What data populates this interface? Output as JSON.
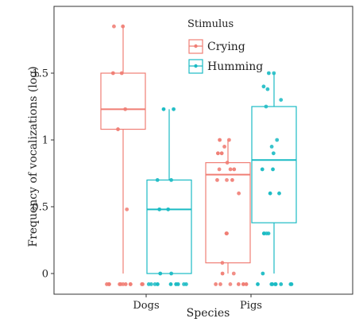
{
  "chart_data": {
    "type": "box",
    "xlabel": "Species",
    "ylabel": "Frequency of vocalizations (log)",
    "categories": [
      "Dogs",
      "Pigs"
    ],
    "ylim": [
      -0.1,
      1.9
    ],
    "yticks": [
      0,
      0.5,
      1,
      1.5
    ],
    "ytick_labels": [
      "0",
      "0.5",
      "1",
      "1.5"
    ],
    "grid": false,
    "legend": {
      "title": "Stimulus",
      "position": "top-center"
    },
    "series": [
      {
        "name": "Crying",
        "color": "#F07E75",
        "boxes": [
          {
            "category": "Dogs",
            "min": 0,
            "q1": 1.08,
            "median": 1.23,
            "q3": 1.5,
            "max": 1.85
          },
          {
            "category": "Pigs",
            "min": 0,
            "q1": 0.08,
            "median": 0.74,
            "q3": 0.83,
            "max": 1.0
          }
        ],
        "points": [
          {
            "category": "Dogs",
            "values": [
              1.85,
              1.85,
              1.5,
              1.5,
              1.23,
              1.08,
              0.48,
              -0.08,
              -0.08,
              -0.08,
              -0.08,
              -0.08,
              -0.08,
              -0.08,
              -0.08,
              -0.08,
              -0.08,
              -0.08
            ]
          },
          {
            "category": "Pigs",
            "values": [
              1.0,
              1.0,
              0.95,
              0.9,
              0.9,
              0.83,
              0.78,
              0.78,
              0.78,
              0.7,
              0.7,
              0.7,
              0.6,
              0.3,
              0.3,
              0.3,
              0.08,
              0,
              0,
              -0.08,
              -0.08,
              -0.08,
              -0.08,
              -0.08,
              -0.08
            ]
          }
        ]
      },
      {
        "name": "Humming",
        "color": "#1BBBC4",
        "boxes": [
          {
            "category": "Dogs",
            "min": 0,
            "q1": 0,
            "median": 0.48,
            "q3": 0.7,
            "max": 1.23
          },
          {
            "category": "Pigs",
            "min": 0,
            "q1": 0.38,
            "median": 0.85,
            "q3": 1.25,
            "max": 1.5
          }
        ],
        "points": [
          {
            "category": "Dogs",
            "values": [
              1.23,
              1.23,
              0.7,
              0.7,
              0.48,
              0.48,
              0,
              0,
              -0.08,
              -0.08,
              -0.08,
              -0.08,
              -0.08,
              -0.08,
              -0.08,
              -0.08,
              -0.08
            ]
          },
          {
            "category": "Pigs",
            "values": [
              1.5,
              1.5,
              1.4,
              1.38,
              1.3,
              1.25,
              1.0,
              0.95,
              0.9,
              0.78,
              0.78,
              0.6,
              0.6,
              0.3,
              0.3,
              0.3,
              0.3,
              0,
              -0.08,
              -0.08,
              -0.08,
              -0.08,
              -0.08,
              -0.08,
              -0.08,
              -0.08
            ]
          }
        ]
      }
    ]
  }
}
